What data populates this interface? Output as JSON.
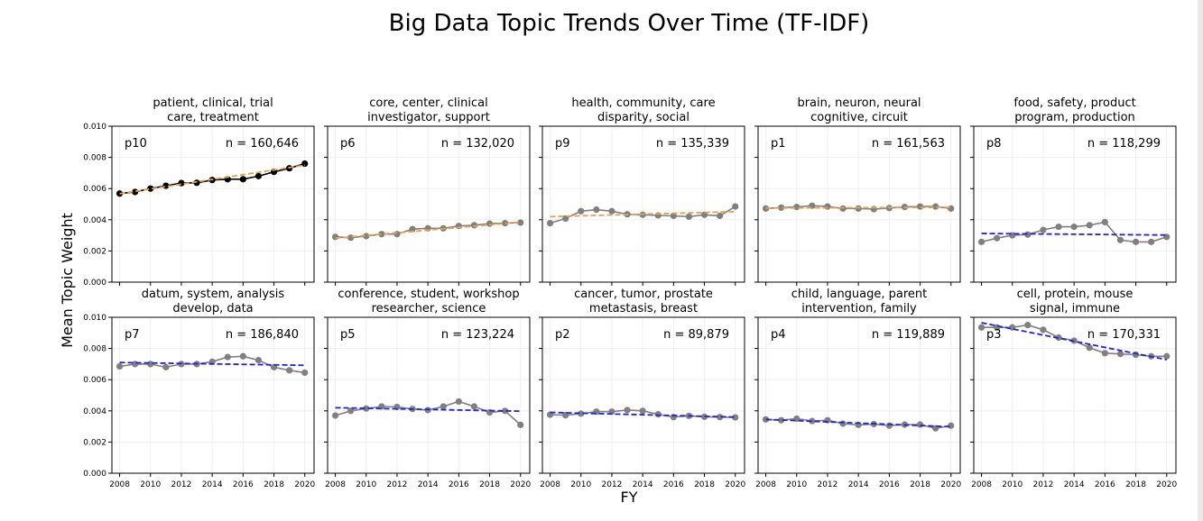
{
  "figure": {
    "title": "Big Data Topic Trends Over Time (TF-IDF)",
    "ylabel": "Mean Topic Weight",
    "xlabel": "FY",
    "cropped_text": "  "
  },
  "colors": {
    "point_dark": "#000000",
    "point_gray": "#808080",
    "trend_up": "#e8a04a",
    "trend_down": "#2222dd",
    "grid": "#efefef"
  },
  "chart_data": {
    "type": "line",
    "layout": "small-multiples 2x5, shared axes",
    "x": [
      2008,
      2009,
      2010,
      2011,
      2012,
      2013,
      2014,
      2015,
      2016,
      2017,
      2018,
      2019,
      2020
    ],
    "xticks": [
      "2008",
      "2010",
      "2012",
      "2014",
      "2016",
      "2018",
      "2020"
    ],
    "xlim": [
      2007.5,
      2020.6
    ],
    "ylim": [
      0,
      0.01
    ],
    "yticks": [
      "0.000",
      "0.002",
      "0.004",
      "0.006",
      "0.008",
      "0.010"
    ],
    "grid": true,
    "panels": [
      {
        "title": [
          "patient, clinical, trial",
          "care, treatment"
        ],
        "label": "p10",
        "n": "n = 160,646",
        "point_color": "dark",
        "trend_color": "up",
        "values": [
          0.00568,
          0.00578,
          0.006,
          0.00618,
          0.00635,
          0.00637,
          0.00655,
          0.0066,
          0.0066,
          0.0068,
          0.00707,
          0.0073,
          0.0076
        ],
        "trend": [
          0.00567,
          0.0075
        ]
      },
      {
        "title": [
          "core, center, clinical",
          "investigator, support"
        ],
        "label": "p6",
        "n": "n = 132,020",
        "point_color": "gray",
        "trend_color": "up",
        "values": [
          0.0029,
          0.00285,
          0.00295,
          0.00308,
          0.00308,
          0.0034,
          0.00345,
          0.00345,
          0.0036,
          0.00365,
          0.00375,
          0.00378,
          0.00382
        ],
        "trend": [
          0.00282,
          0.00385
        ]
      },
      {
        "title": [
          "health, community, care",
          "disparity, social"
        ],
        "label": "p9",
        "n": "n = 135,339",
        "point_color": "gray",
        "trend_color": "up",
        "values": [
          0.00378,
          0.00408,
          0.00455,
          0.00465,
          0.00455,
          0.00435,
          0.00432,
          0.00428,
          0.00425,
          0.0042,
          0.00432,
          0.00425,
          0.00485
        ],
        "trend": [
          0.0042,
          0.00452
        ]
      },
      {
        "title": [
          "brain, neuron, neural",
          "cognitive, circuit"
        ],
        "label": "p1",
        "n": "n = 161,563",
        "point_color": "gray",
        "trend_color": "up",
        "values": [
          0.00472,
          0.00478,
          0.00482,
          0.0049,
          0.00485,
          0.00472,
          0.00472,
          0.00468,
          0.00475,
          0.00482,
          0.00485,
          0.00485,
          0.00472
        ],
        "trend": [
          0.00475,
          0.0048
        ]
      },
      {
        "title": [
          "food, safety, product",
          "program, production"
        ],
        "label": "p8",
        "n": "n = 118,299",
        "point_color": "gray",
        "trend_color": "down",
        "values": [
          0.00258,
          0.00282,
          0.003,
          0.00305,
          0.00335,
          0.00355,
          0.00355,
          0.00365,
          0.00385,
          0.0027,
          0.00258,
          0.00258,
          0.0029
        ],
        "trend": [
          0.00312,
          0.00302
        ]
      },
      {
        "title": [
          "datum, system, analysis",
          "develop, data"
        ],
        "label": "p7",
        "n": "n = 186,840",
        "point_color": "gray",
        "trend_color": "down",
        "values": [
          0.00685,
          0.007,
          0.007,
          0.0068,
          0.007,
          0.007,
          0.00715,
          0.00745,
          0.0075,
          0.00725,
          0.0068,
          0.0066,
          0.00645
        ],
        "trend": [
          0.0071,
          0.00692
        ]
      },
      {
        "title": [
          "conference, student, workshop",
          "researcher, science"
        ],
        "label": "p5",
        "n": "n = 123,224",
        "point_color": "gray",
        "trend_color": "down",
        "values": [
          0.0037,
          0.004,
          0.00415,
          0.00428,
          0.00425,
          0.00412,
          0.00405,
          0.00428,
          0.0046,
          0.00428,
          0.0039,
          0.004,
          0.0031
        ],
        "trend": [
          0.0042,
          0.00398
        ]
      },
      {
        "title": [
          "cancer, tumor, prostate",
          "metastasis, breast"
        ],
        "label": "p2",
        "n": "n = 89,879",
        "point_color": "gray",
        "trend_color": "down",
        "values": [
          0.00375,
          0.00372,
          0.00382,
          0.00395,
          0.00395,
          0.00405,
          0.004,
          0.00378,
          0.0036,
          0.00368,
          0.00362,
          0.0036,
          0.00358
        ],
        "trend": [
          0.0039,
          0.0036
        ]
      },
      {
        "title": [
          "child, language, parent",
          "intervention, family"
        ],
        "label": "p4",
        "n": "n = 119,889",
        "point_color": "gray",
        "trend_color": "down",
        "values": [
          0.00345,
          0.0034,
          0.0035,
          0.00335,
          0.0034,
          0.00318,
          0.0031,
          0.00315,
          0.00305,
          0.00312,
          0.00312,
          0.00288,
          0.00305
        ],
        "trend": [
          0.00345,
          0.00298
        ]
      },
      {
        "title": [
          "cell, protein, mouse",
          "signal, immune"
        ],
        "label": "p3",
        "n": "n = 170,331",
        "point_color": "gray",
        "trend_color": "down",
        "values": [
          0.00935,
          0.00935,
          0.00935,
          0.0095,
          0.0092,
          0.0087,
          0.0085,
          0.00805,
          0.0077,
          0.00765,
          0.0076,
          0.0075,
          0.0075
        ],
        "trend": [
          0.00965,
          0.00728
        ]
      }
    ]
  }
}
